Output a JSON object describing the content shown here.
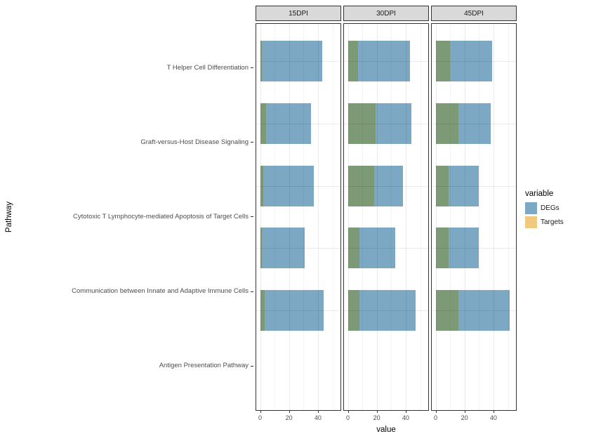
{
  "figure": {
    "y_axis_title": "Pathway",
    "x_axis_title": "value",
    "background_color": "#FFFFFF",
    "strip_background_color": "#D9D9D9"
  },
  "legend": {
    "title": "variable",
    "entries": [
      {
        "label": "DEGs",
        "color": "#7CA8C4"
      },
      {
        "label": "Targets",
        "color": "#EFC97E"
      }
    ]
  },
  "chart_data": {
    "type": "bar",
    "orientation": "horizontal",
    "facets": [
      "15DPI",
      "30DPI",
      "45DPI"
    ],
    "categories": [
      "T Helper Cell Differentiation",
      "Graft-versus-Host Disease Signaling",
      "Cytotoxic T Lymphocyte-mediated Apoptosis of Target Cells",
      "Communication between Innate and Adaptive Immune Cells",
      "Antigen Presentation Pathway"
    ],
    "xlabel": "value",
    "ylabel": "Pathway",
    "legend_title": "variable",
    "xlim": [
      0,
      55
    ],
    "x_ticks": [
      0,
      20,
      40
    ],
    "x_minor_ticks": [
      10,
      30,
      50
    ],
    "grid": true,
    "legend_position": "right",
    "series": [
      {
        "name": "DEGs",
        "color": "#7CA8C4",
        "values_by_facet": {
          "15DPI": [
            43,
            35,
            37,
            31,
            44
          ],
          "30DPI": [
            43,
            44,
            38,
            33,
            47
          ],
          "45DPI": [
            39,
            38,
            30,
            30,
            51
          ]
        }
      },
      {
        "name": "Targets",
        "color": "#EFC97E",
        "values_by_facet": {
          "15DPI": [
            1,
            4,
            2,
            1,
            3
          ],
          "30DPI": [
            7,
            19,
            18,
            8,
            8
          ],
          "45DPI": [
            10,
            16,
            9,
            9,
            16
          ]
        }
      }
    ],
    "overlap_color": "#7D9A76",
    "note_bars_drawn_overlapping_from_zero": true
  }
}
